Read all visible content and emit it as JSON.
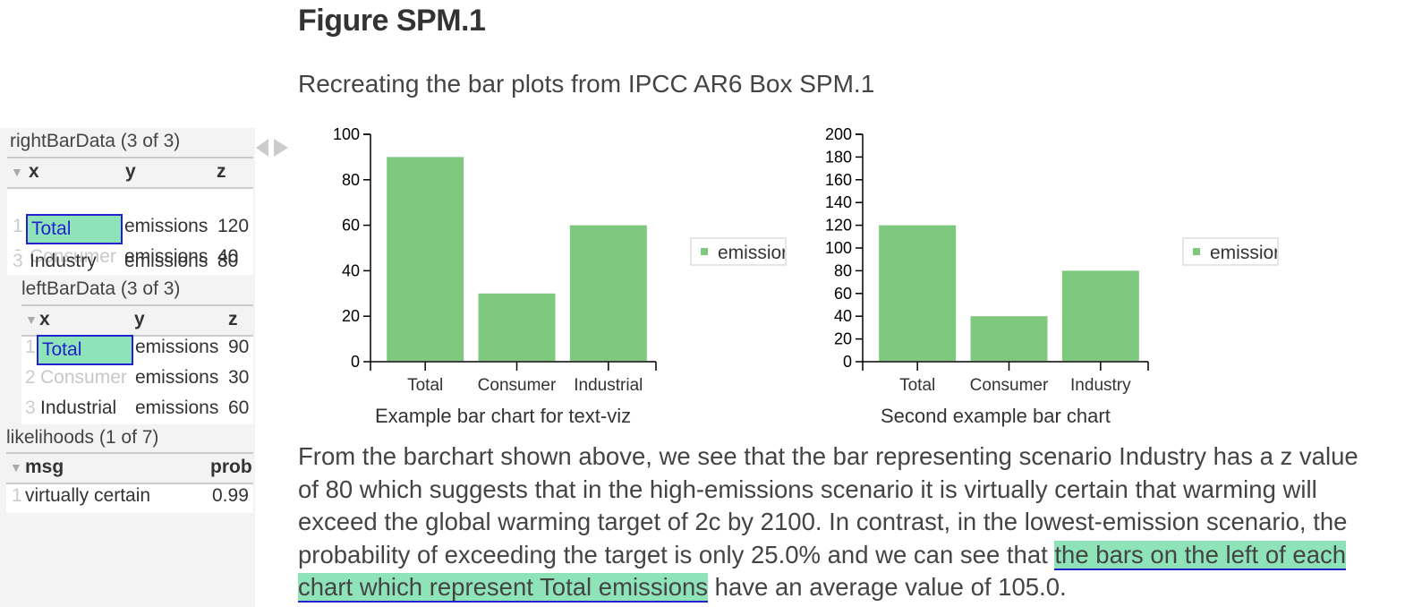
{
  "figure": {
    "title": "Figure SPM.1",
    "subtitle": "Recreating the bar plots from IPCC AR6 Box SPM.1"
  },
  "panel": {
    "right_table": {
      "title": "rightBarData (3 of 3)",
      "columns": [
        "x",
        "y",
        "z"
      ],
      "rows": [
        {
          "idx": "1",
          "x": "Total",
          "y": "emissions",
          "z": "120"
        },
        {
          "idx": "2",
          "x": "Consumer",
          "y": "emissions",
          "z": "40"
        },
        {
          "idx": "3",
          "x": "Industry",
          "y": "emissions",
          "z": "80"
        }
      ]
    },
    "left_table": {
      "title": "leftBarData (3 of 3)",
      "columns": [
        "x",
        "y",
        "z"
      ],
      "rows": [
        {
          "idx": "1",
          "x": "Total",
          "y": "emissions",
          "z": "90"
        },
        {
          "idx": "2",
          "x": "Consumer",
          "y": "emissions",
          "z": "30"
        },
        {
          "idx": "3",
          "x": "Industrial",
          "y": "emissions",
          "z": "60"
        }
      ]
    },
    "likelihoods_table": {
      "title": "likelihoods (1 of 7)",
      "columns": [
        "msg",
        "prob"
      ],
      "rows": [
        {
          "idx": "1",
          "msg": "virtually certain",
          "prob": "0.99"
        }
      ]
    }
  },
  "chart_data": [
    {
      "type": "bar",
      "title": "Example bar chart for text-viz",
      "categories": [
        "Total",
        "Consumer",
        "Industrial"
      ],
      "series": [
        {
          "name": "emissions",
          "values": [
            90,
            30,
            60
          ]
        }
      ],
      "ylim": [
        0,
        100
      ],
      "yticks": [
        "0",
        "20",
        "40",
        "60",
        "80",
        "100"
      ],
      "legend_label": "emissior",
      "legend_position": "right",
      "bar_color": "#7fc97f"
    },
    {
      "type": "bar",
      "title": "Second example bar chart",
      "categories": [
        "Total",
        "Consumer",
        "Industry"
      ],
      "series": [
        {
          "name": "emissions",
          "values": [
            120,
            40,
            80
          ]
        }
      ],
      "ylim": [
        0,
        200
      ],
      "yticks": [
        "0",
        "20",
        "40",
        "60",
        "80",
        "100",
        "120",
        "140",
        "160",
        "180",
        "200"
      ],
      "legend_label": "emissior",
      "legend_position": "right",
      "bar_color": "#7fc97f"
    }
  ],
  "paragraph": {
    "line1": "From the barchart shown above, we see that the bar representing scenario Industry has a z value",
    "line2": "of 80 which suggests that in the high-emissions scenario it is virtually certain that warming will",
    "line3": "exceed the global warming target of 2c by 2100. In contrast, in the lowest-emission scenario, the",
    "line4_pre": "probability of exceeding the target is only 25.0% and we can see that ",
    "line4_hl": "the bars on the left of each",
    "line5_hl": "chart which represent Total emissions",
    "line5_post": " have an average value of 105.0."
  },
  "colors": {
    "highlight": "#8ee4b8",
    "selection_border": "#2222cc",
    "bar": "#7fc97f"
  }
}
